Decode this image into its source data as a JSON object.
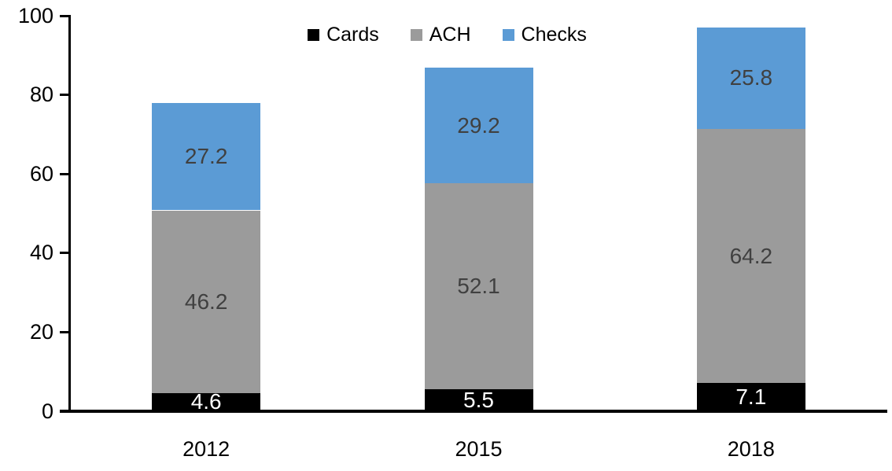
{
  "chart_data": {
    "type": "bar",
    "subtype": "stacked",
    "title": "",
    "xlabel": "",
    "ylabel": "",
    "categories": [
      "2012",
      "2015",
      "2018"
    ],
    "series": [
      {
        "name": "Cards",
        "color": "#000000",
        "label_color": "#ffffff",
        "values": [
          4.6,
          5.5,
          7.1
        ]
      },
      {
        "name": "ACH",
        "color": "#9b9b9b",
        "label_color": "#404040",
        "values": [
          46.2,
          52.1,
          64.2
        ]
      },
      {
        "name": "Checks",
        "color": "#5b9bd5",
        "label_color": "#404040",
        "values": [
          27.2,
          29.2,
          25.8
        ]
      }
    ],
    "stack_totals": [
      78.0,
      86.8,
      97.1
    ],
    "ylim": [
      0,
      100
    ],
    "yticks": [
      0,
      20,
      40,
      60,
      80,
      100
    ],
    "grid": false,
    "data_labels": true,
    "legend_position": "top-center",
    "axis_color": "#000000",
    "background_color": "#ffffff"
  }
}
